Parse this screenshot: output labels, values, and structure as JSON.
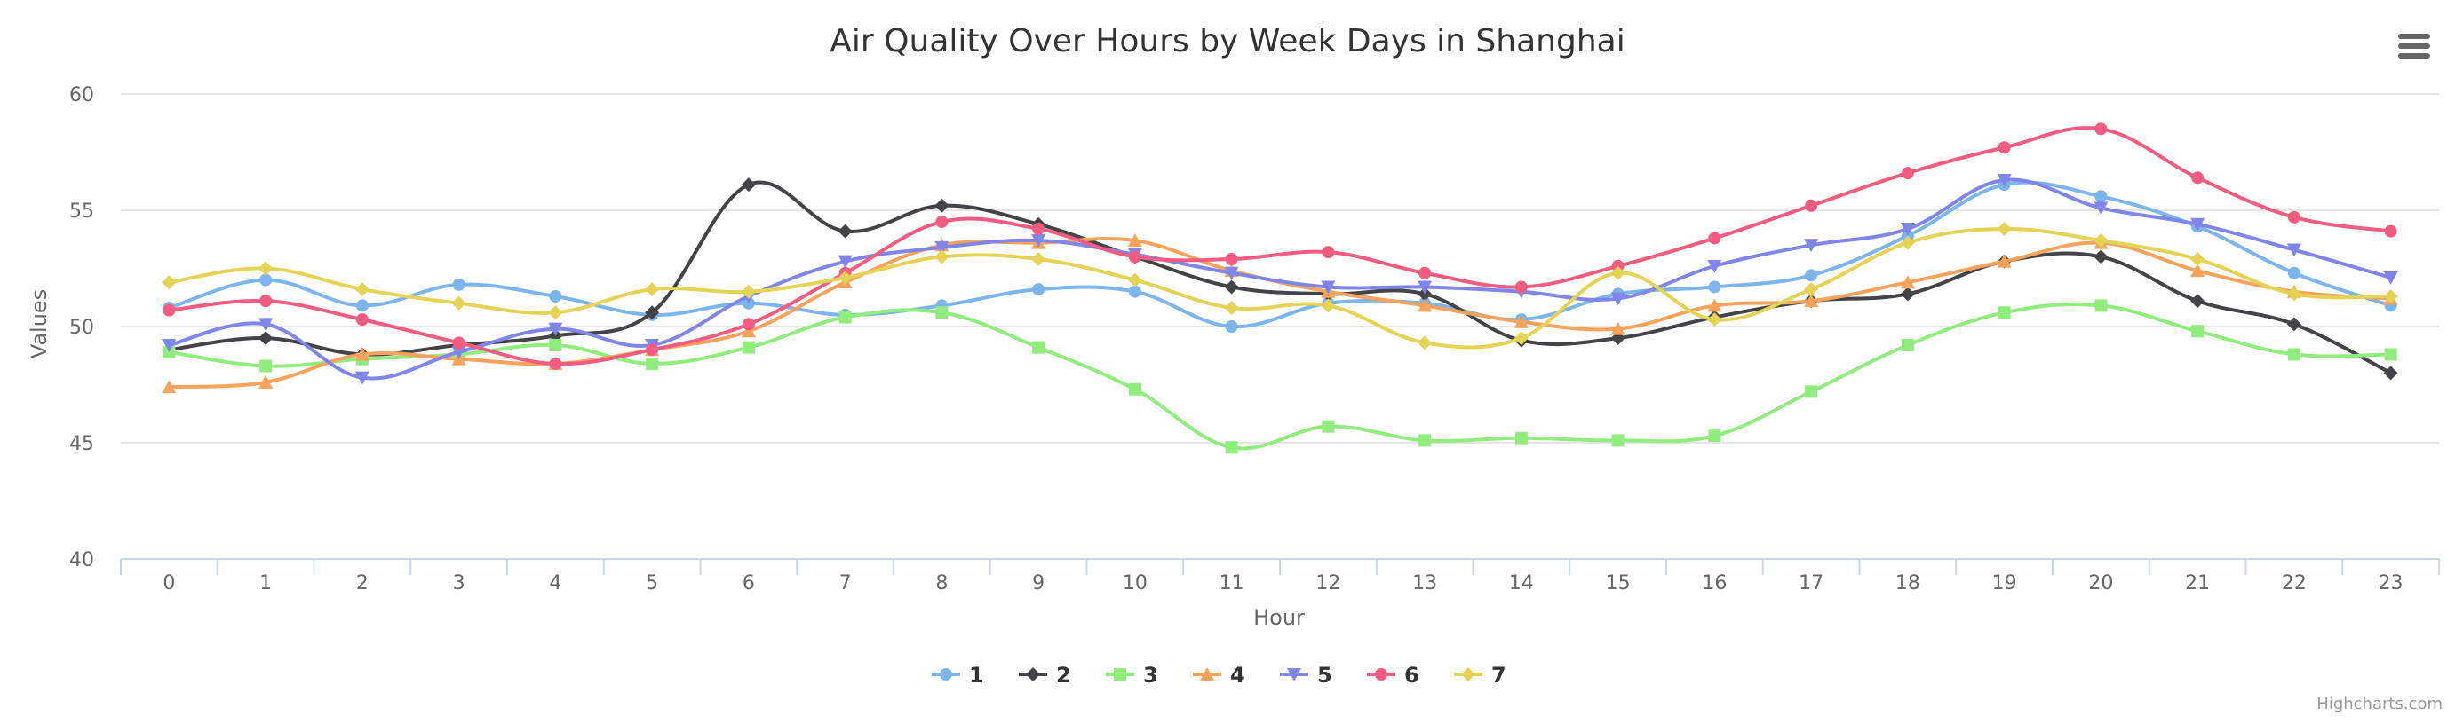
{
  "chart_data": {
    "type": "line",
    "title": "Air Quality Over Hours by Week Days in Shanghai",
    "xlabel": "Hour",
    "ylabel": "Values",
    "categories": [
      "0",
      "1",
      "2",
      "3",
      "4",
      "5",
      "6",
      "7",
      "8",
      "9",
      "10",
      "11",
      "12",
      "13",
      "14",
      "15",
      "16",
      "17",
      "18",
      "19",
      "20",
      "21",
      "22",
      "23"
    ],
    "ylim": [
      40,
      60
    ],
    "yticks": [
      40,
      45,
      50,
      55,
      60
    ],
    "grid": true,
    "legend_position": "bottom-center",
    "series": [
      {
        "name": "1",
        "color": "#7cb5ec",
        "marker": "circle",
        "values": [
          50.8,
          52.0,
          50.9,
          51.8,
          51.3,
          50.5,
          51.0,
          50.5,
          50.9,
          51.6,
          51.5,
          50.0,
          51.0,
          51.0,
          50.3,
          51.4,
          51.7,
          52.2,
          53.9,
          56.1,
          55.6,
          54.3,
          52.3,
          50.9
        ]
      },
      {
        "name": "2",
        "color": "#434348",
        "marker": "diamond",
        "values": [
          49.0,
          49.5,
          48.8,
          49.2,
          49.6,
          50.6,
          56.1,
          54.1,
          55.2,
          54.4,
          53.0,
          51.7,
          51.4,
          51.4,
          49.4,
          49.5,
          50.4,
          51.1,
          51.4,
          52.8,
          53.0,
          51.1,
          50.1,
          48.0
        ]
      },
      {
        "name": "3",
        "color": "#90ed7d",
        "marker": "square",
        "values": [
          48.9,
          48.3,
          48.6,
          48.8,
          49.2,
          48.4,
          49.1,
          50.4,
          50.6,
          49.1,
          47.3,
          44.8,
          45.7,
          45.1,
          45.2,
          45.1,
          45.3,
          47.2,
          49.2,
          50.6,
          50.9,
          49.8,
          48.8,
          48.8
        ]
      },
      {
        "name": "4",
        "color": "#f7a35c",
        "marker": "triangle",
        "values": [
          47.4,
          47.6,
          48.8,
          48.6,
          48.4,
          49.0,
          49.8,
          51.9,
          53.5,
          53.6,
          53.7,
          52.4,
          51.5,
          50.9,
          50.2,
          49.9,
          50.9,
          51.1,
          51.9,
          52.8,
          53.6,
          52.4,
          51.5,
          51.2
        ]
      },
      {
        "name": "5",
        "color": "#8085e9",
        "marker": "triangle-down",
        "values": [
          49.2,
          50.1,
          47.8,
          48.9,
          49.9,
          49.2,
          51.3,
          52.8,
          53.4,
          53.7,
          53.1,
          52.3,
          51.7,
          51.7,
          51.5,
          51.2,
          52.6,
          53.5,
          54.2,
          56.3,
          55.1,
          54.4,
          53.3,
          52.1
        ]
      },
      {
        "name": "6",
        "color": "#f15c80",
        "marker": "circle",
        "values": [
          50.7,
          51.1,
          50.3,
          49.3,
          48.4,
          49.0,
          50.1,
          52.3,
          54.5,
          54.2,
          53.0,
          52.9,
          53.2,
          52.3,
          51.7,
          52.6,
          53.8,
          55.2,
          56.6,
          57.7,
          58.5,
          56.4,
          54.7,
          54.1
        ]
      },
      {
        "name": "7",
        "color": "#e4d354",
        "marker": "diamond",
        "values": [
          51.9,
          52.5,
          51.6,
          51.0,
          50.6,
          51.6,
          51.5,
          52.1,
          53.0,
          52.9,
          52.0,
          50.8,
          50.9,
          49.3,
          49.5,
          52.3,
          50.3,
          51.6,
          53.6,
          54.2,
          53.7,
          52.9,
          51.4,
          51.3
        ]
      }
    ]
  },
  "ui": {
    "menu_label": "Chart context menu",
    "credits": "Highcharts.com"
  }
}
